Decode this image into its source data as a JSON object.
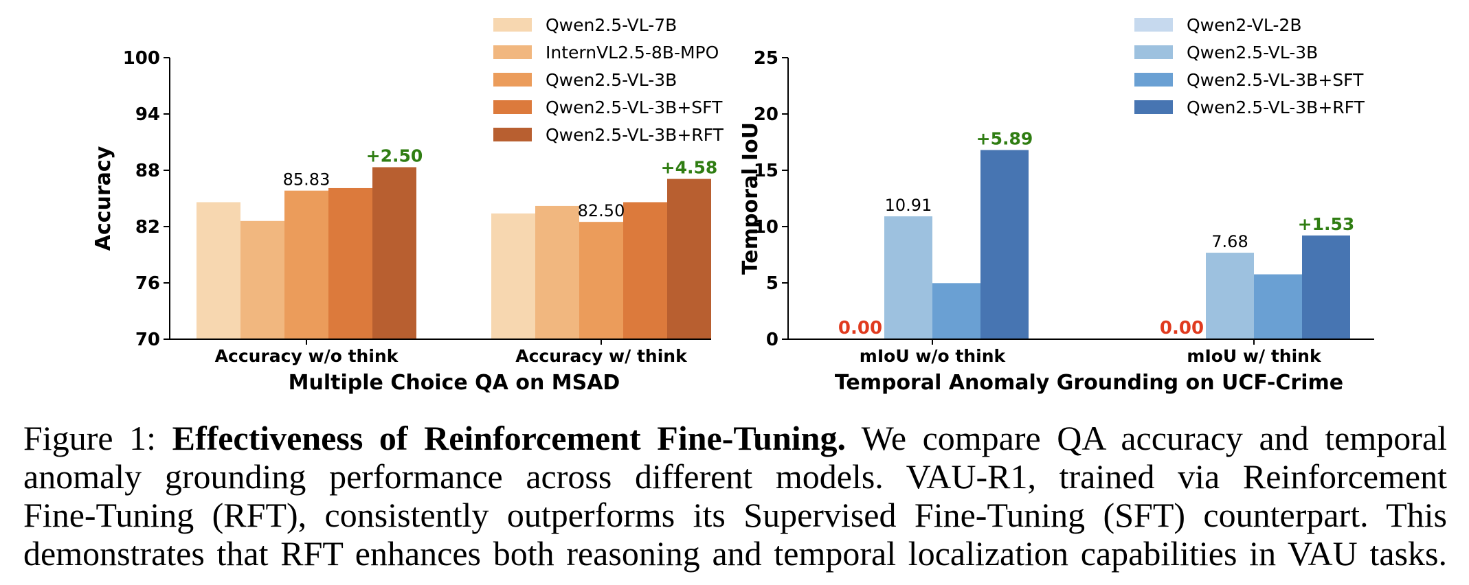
{
  "chart_data": [
    {
      "type": "bar",
      "title": "",
      "xlabel": "Multiple Choice QA on MSAD",
      "ylabel": "Accuracy",
      "ylim": [
        70,
        100
      ],
      "yticks": [
        "70",
        "76",
        "82",
        "88",
        "94",
        "100"
      ],
      "categories": [
        "Accuracy w/o think",
        "Accuracy w/ think"
      ],
      "series": [
        {
          "name": "Qwen2.5-VL-7B",
          "color": "#f7d7b0",
          "values": [
            84.6,
            83.4
          ]
        },
        {
          "name": "InternVL2.5-8B-MPO",
          "color": "#f1b77f",
          "values": [
            82.6,
            84.2
          ]
        },
        {
          "name": "Qwen2.5-VL-3B",
          "color": "#eb9c5b",
          "values": [
            85.83,
            82.5
          ]
        },
        {
          "name": "Qwen2.5-VL-3B+SFT",
          "color": "#dc7a3c",
          "values": [
            86.1,
            84.6
          ]
        },
        {
          "name": "Qwen2.5-VL-3B+RFT",
          "color": "#b85f30",
          "values": [
            88.33,
            87.08
          ]
        }
      ],
      "value_labels": [
        {
          "category": 0,
          "series": 2,
          "text": "85.83",
          "kind": "value"
        },
        {
          "category": 0,
          "series": 4,
          "text": "+2.50",
          "kind": "delta"
        },
        {
          "category": 1,
          "series": 2,
          "text": "82.50",
          "kind": "value"
        },
        {
          "category": 1,
          "series": 4,
          "text": "+4.58",
          "kind": "delta"
        }
      ],
      "legend": "top-center",
      "grid": false
    },
    {
      "type": "bar",
      "title": "",
      "xlabel": "Temporal Anomaly Grounding on UCF-Crime",
      "ylabel": "Temporal IoU",
      "ylim": [
        0,
        25
      ],
      "yticks": [
        "0",
        "5",
        "10",
        "15",
        "20",
        "25"
      ],
      "categories": [
        "mIoU w/o think",
        "mIoU w/ think"
      ],
      "series": [
        {
          "name": "Qwen2-VL-2B",
          "color": "#c6d9ee",
          "values": [
            0.0,
            0.0
          ]
        },
        {
          "name": "Qwen2.5-VL-3B",
          "color": "#9dc1df",
          "values": [
            10.91,
            7.68
          ]
        },
        {
          "name": "Qwen2.5-VL-3B+SFT",
          "color": "#6aa0d3",
          "values": [
            4.98,
            5.76
          ]
        },
        {
          "name": "Qwen2.5-VL-3B+RFT",
          "color": "#4775b2",
          "values": [
            16.8,
            9.21
          ]
        }
      ],
      "value_labels": [
        {
          "category": 0,
          "series": 0,
          "text": "0.00",
          "kind": "zero"
        },
        {
          "category": 0,
          "series": 1,
          "text": "10.91",
          "kind": "value"
        },
        {
          "category": 0,
          "series": 3,
          "text": "+5.89",
          "kind": "delta"
        },
        {
          "category": 1,
          "series": 0,
          "text": "0.00",
          "kind": "zero"
        },
        {
          "category": 1,
          "series": 1,
          "text": "7.68",
          "kind": "value"
        },
        {
          "category": 1,
          "series": 3,
          "text": "+1.53",
          "kind": "delta"
        }
      ],
      "legend": "top-right",
      "grid": false
    }
  ],
  "caption": {
    "prefix": "Figure 1: ",
    "bold": "Effectiveness of Reinforcement Fine-Tuning.",
    "line1_rest": " We compare QA accuracy and temporal",
    "line2": "anomaly grounding performance across different models.  VAU-R1, trained via Reinforcement",
    "line3": "Fine-Tuning (RFT), consistently outperforms its Supervised Fine-Tuning (SFT) counterpart. This",
    "line4": "demonstrates that RFT enhances both reasoning and temporal localization capabilities in VAU tasks."
  }
}
